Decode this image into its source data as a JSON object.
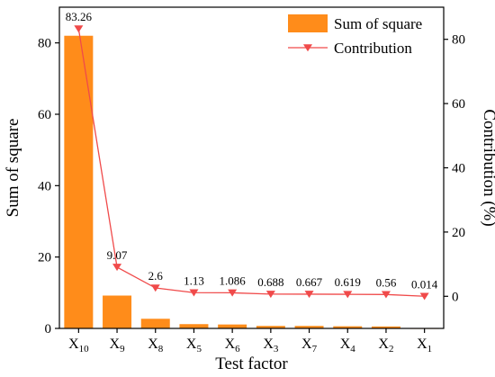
{
  "chart_data": {
    "type": "bar",
    "categories": [
      {
        "base": "X",
        "sub": "10"
      },
      {
        "base": "X",
        "sub": "9"
      },
      {
        "base": "X",
        "sub": "8"
      },
      {
        "base": "X",
        "sub": "5"
      },
      {
        "base": "X",
        "sub": "6"
      },
      {
        "base": "X",
        "sub": "3"
      },
      {
        "base": "X",
        "sub": "7"
      },
      {
        "base": "X",
        "sub": "4"
      },
      {
        "base": "X",
        "sub": "2"
      },
      {
        "base": "X",
        "sub": "1"
      }
    ],
    "series": [
      {
        "name": "Sum of square",
        "type": "bar",
        "axis": "left",
        "color": "#ff8c1a",
        "values": [
          82,
          9.2,
          2.7,
          1.2,
          1.1,
          0.7,
          0.7,
          0.6,
          0.55,
          0.01
        ]
      },
      {
        "name": "Contribution",
        "type": "line",
        "axis": "right",
        "color": "#f04a4a",
        "marker": "down-triangle",
        "values": [
          83.26,
          9.07,
          2.6,
          1.13,
          1.086,
          0.688,
          0.667,
          0.619,
          0.56,
          0.014
        ],
        "labels": [
          "83.26",
          "9.07",
          "2.6",
          "1.13",
          "1.086",
          "0.688",
          "0.667",
          "0.619",
          "0.56",
          "0.014"
        ]
      }
    ],
    "xlabel": "Test factor",
    "ylabel_left": "Sum of square",
    "ylabel_right": "Contribution (%)",
    "ylim_left": [
      0,
      90
    ],
    "ylim_right": [
      -10,
      90
    ],
    "yticks_left": [
      "0",
      "20",
      "40",
      "60",
      "80"
    ],
    "yticks_right": [
      "0",
      "20",
      "40",
      "60",
      "80"
    ],
    "legend": {
      "position": "top-right"
    },
    "grid": false
  }
}
